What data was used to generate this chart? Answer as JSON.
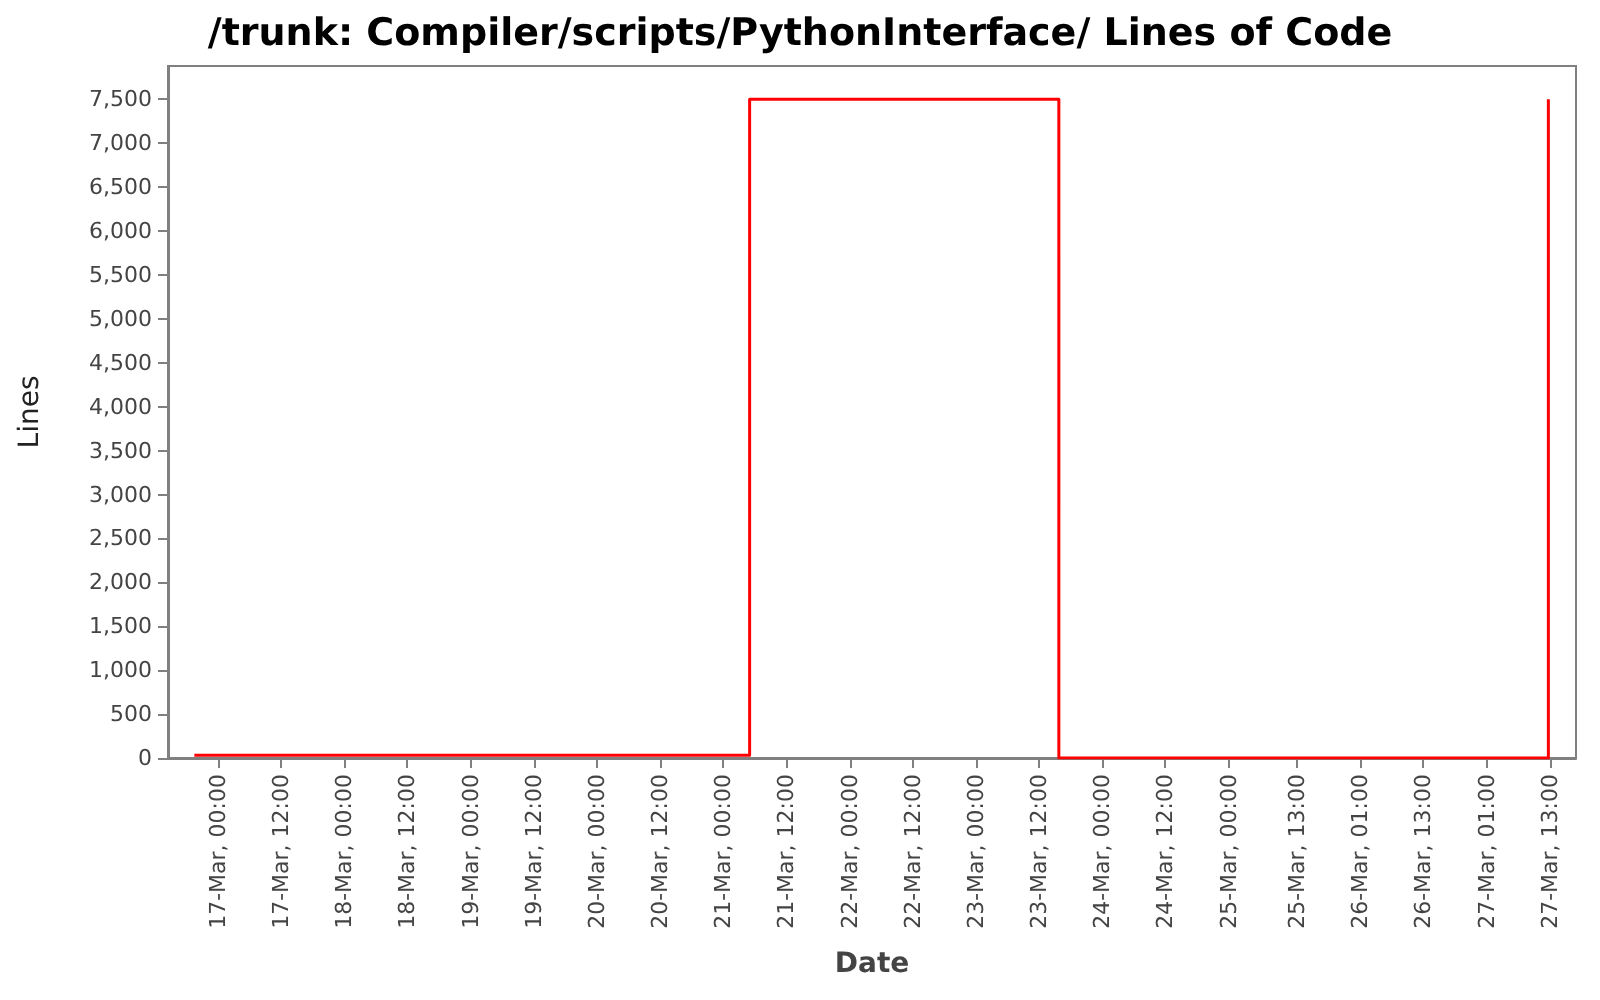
{
  "chart_data": {
    "type": "step",
    "title": "/trunk: Compiler/scripts/PythonInterface/ Lines of Code",
    "xlabel": "Date",
    "ylabel": "Lines",
    "x": [
      "--03-16T19:30",
      "--03-21T05:00",
      "--03-23T15:45",
      "--03-27T12:45"
    ],
    "series": [
      {
        "color": "#ff0000",
        "values": [
          30,
          7500,
          0,
          7500
        ]
      }
    ],
    "xlim": [
      "--03-16T14:30",
      "--03-27T18:00"
    ],
    "xticks": [
      {
        "value": "--03-17T00:00",
        "label": "17-Mar, 00:00"
      },
      {
        "value": "--03-17T12:00",
        "label": "17-Mar, 12:00"
      },
      {
        "value": "--03-18T00:00",
        "label": "18-Mar, 00:00"
      },
      {
        "value": "--03-18T12:00",
        "label": "18-Mar, 12:00"
      },
      {
        "value": "--03-19T00:00",
        "label": "19-Mar, 00:00"
      },
      {
        "value": "--03-19T12:00",
        "label": "19-Mar, 12:00"
      },
      {
        "value": "--03-20T00:00",
        "label": "20-Mar, 00:00"
      },
      {
        "value": "--03-20T12:00",
        "label": "20-Mar, 12:00"
      },
      {
        "value": "--03-21T00:00",
        "label": "21-Mar, 00:00"
      },
      {
        "value": "--03-21T12:00",
        "label": "21-Mar, 12:00"
      },
      {
        "value": "--03-22T00:00",
        "label": "22-Mar, 00:00"
      },
      {
        "value": "--03-22T12:00",
        "label": "22-Mar, 12:00"
      },
      {
        "value": "--03-23T00:00",
        "label": "23-Mar, 00:00"
      },
      {
        "value": "--03-23T12:00",
        "label": "23-Mar, 12:00"
      },
      {
        "value": "--03-24T00:00",
        "label": "24-Mar, 00:00"
      },
      {
        "value": "--03-24T12:00",
        "label": "24-Mar, 12:00"
      },
      {
        "value": "--03-25T00:00",
        "label": "25-Mar, 00:00"
      },
      {
        "value": "--03-25T13:00",
        "label": "25-Mar, 13:00"
      },
      {
        "value": "--03-26T01:00",
        "label": "26-Mar, 01:00"
      },
      {
        "value": "--03-26T13:00",
        "label": "26-Mar, 13:00"
      },
      {
        "value": "--03-27T01:00",
        "label": "27-Mar, 01:00"
      },
      {
        "value": "--03-27T13:00",
        "label": "27-Mar, 13:00"
      }
    ],
    "ylim": [
      0,
      7880
    ],
    "yticks": [
      0,
      500,
      {
        "value": 1000,
        "label": "1,000"
      },
      {
        "value": 1500,
        "label": "1,500"
      },
      {
        "value": 2000,
        "label": "2,000"
      },
      {
        "value": 2500,
        "label": "2,500"
      },
      {
        "value": 3000,
        "label": "3,000"
      },
      {
        "value": 3500,
        "label": "3,500"
      },
      {
        "value": 4000,
        "label": "4,000"
      },
      {
        "value": 4500,
        "label": "4,500"
      },
      {
        "value": 5000,
        "label": "5,000"
      },
      {
        "value": 5500,
        "label": "5,500"
      },
      {
        "value": 6000,
        "label": "6,000"
      },
      {
        "value": 6500,
        "label": "6,500"
      },
      {
        "value": 7000,
        "label": "7,000"
      },
      {
        "value": 7500,
        "label": "7,500"
      }
    ],
    "grid": false,
    "marker": "none",
    "line_style": "solid"
  }
}
